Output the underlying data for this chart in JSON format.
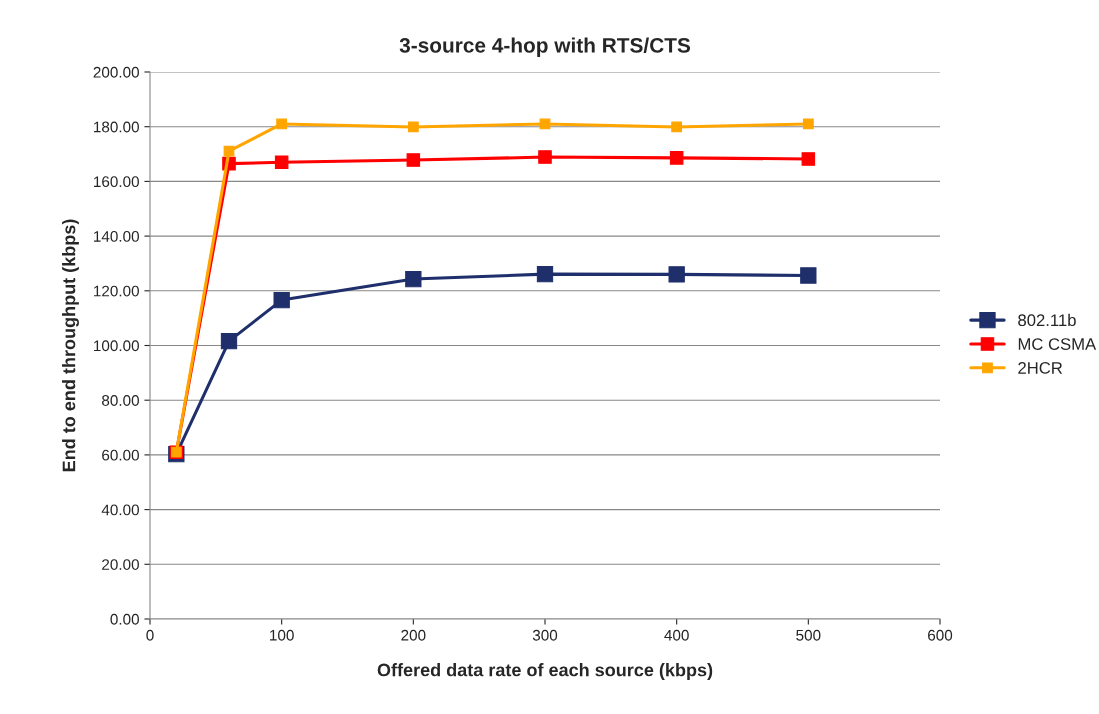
{
  "chart_data": {
    "type": "line",
    "title": "3-source 4-hop with RTS/CTS",
    "xlabel": "Offered data rate of each source (kbps)",
    "ylabel": "End to end throughput (kbps)",
    "x": [
      20,
      60,
      100,
      200,
      300,
      400,
      500
    ],
    "series": [
      {
        "name": "802.11b",
        "color": "#1f2f6b",
        "values": [
          60.3,
          101.6,
          116.6,
          124.3,
          126.1,
          126.0,
          125.6
        ]
      },
      {
        "name": "MC CSMA",
        "color": "#ff0000",
        "values": [
          61,
          166.5,
          167,
          167.8,
          168.9,
          168.6,
          168.2
        ]
      },
      {
        "name": "2HCR",
        "color": "#ffa500",
        "values": [
          61,
          171.1,
          181,
          179.9,
          181,
          179.9,
          181
        ]
      }
    ],
    "xlim": [
      0,
      600
    ],
    "xticks": [
      0,
      100,
      200,
      300,
      400,
      500,
      600
    ],
    "ylim": [
      0,
      200
    ],
    "yticks": [
      {
        "value": 0,
        "label": "0.00"
      },
      {
        "value": 20,
        "label": "20.00"
      },
      {
        "value": 40,
        "label": "40.00"
      },
      {
        "value": 60,
        "label": "60.00"
      },
      {
        "value": 80,
        "label": "80.00"
      },
      {
        "value": 100,
        "label": "100.00"
      },
      {
        "value": 120,
        "label": "120.00"
      },
      {
        "value": 140,
        "label": "140.00"
      },
      {
        "value": 160,
        "label": "160.00"
      },
      {
        "value": 180,
        "label": "180.00"
      },
      {
        "value": 200,
        "label": "200.00"
      }
    ],
    "grid": "y",
    "legend": "right",
    "marker": "square",
    "line_style": "solid"
  }
}
